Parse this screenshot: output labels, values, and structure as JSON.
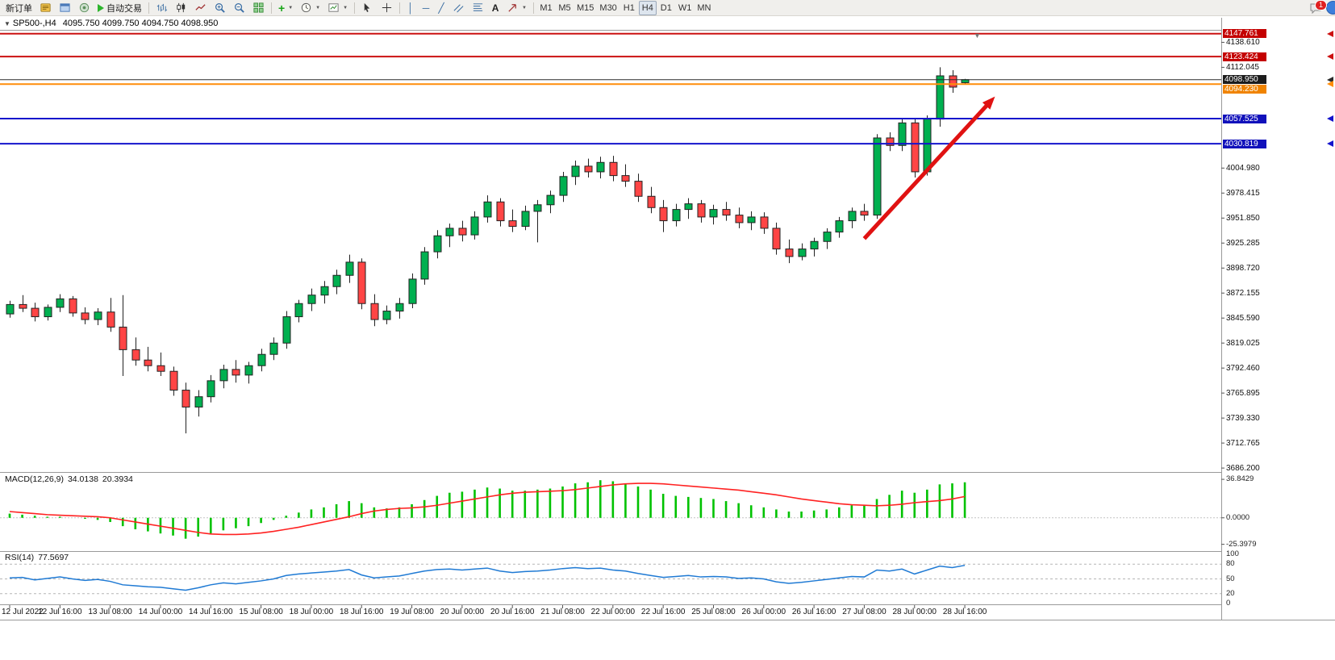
{
  "toolbar": {
    "new_order": "新订单",
    "auto_trading": "自动交易",
    "text_tool": "A",
    "timeframes": [
      "M1",
      "M5",
      "M15",
      "M30",
      "H1",
      "H4",
      "D1",
      "W1",
      "MN"
    ],
    "active_timeframe": "H4",
    "notification_count": "1"
  },
  "chart_header": {
    "symbol_period": "SP500-,H4",
    "ohlc": "4095.750 4099.750 4094.750 4098.950"
  },
  "chart_data": {
    "type": "candlestick",
    "symbol": "SP500-",
    "timeframe": "H4",
    "current_bar": {
      "open": 4095.75,
      "high": 4099.75,
      "low": 4094.75,
      "close": 4098.95
    },
    "up_color": "#00b050",
    "down_color": "#ff4545",
    "price_axis": {
      "visible_range": {
        "top": 4151.0,
        "bottom": 3682.0
      },
      "ticks": [
        "4138.610",
        "4112.045",
        "4004.980",
        "3978.415",
        "3951.850",
        "3925.285",
        "3898.720",
        "3872.155",
        "3845.590",
        "3819.025",
        "3792.460",
        "3765.895",
        "3739.330",
        "3712.765",
        "3686.200"
      ]
    },
    "price_lines": [
      {
        "price": 4147.761,
        "label": "4147.761",
        "color": "#cc1111",
        "chip_bg": "#c40000",
        "width": 2
      },
      {
        "price": 4123.424,
        "label": "4123.424",
        "color": "#cc1111",
        "chip_bg": "#c40000",
        "width": 2
      },
      {
        "price": 4098.95,
        "label": "4098.950",
        "color": "#2b2b2b",
        "chip_bg": "#1c1c1c",
        "width": 1
      },
      {
        "price": 4094.23,
        "label": "4094.230",
        "color": "#ff8d0a",
        "chip_bg": "#f08300",
        "width": 2
      },
      {
        "price": 4057.525,
        "label": "4057.525",
        "color": "#1414cc",
        "chip_bg": "#1111bb",
        "width": 2
      },
      {
        "price": 4030.819,
        "label": "4030.819",
        "color": "#1414cc",
        "chip_bg": "#1111bb",
        "width": 2
      }
    ],
    "x_labels": [
      {
        "text": "12 Jul 2022",
        "bar": 0
      },
      {
        "text": "12 Jul 16:00",
        "bar": 4
      },
      {
        "text": "13 Jul 08:00",
        "bar": 8
      },
      {
        "text": "14 Jul 00:00",
        "bar": 12
      },
      {
        "text": "14 Jul 16:00",
        "bar": 16
      },
      {
        "text": "15 Jul 08:00",
        "bar": 20
      },
      {
        "text": "18 Jul 00:00",
        "bar": 24
      },
      {
        "text": "18 Jul 16:00",
        "bar": 28
      },
      {
        "text": "19 Jul 08:00",
        "bar": 32
      },
      {
        "text": "20 Jul 00:00",
        "bar": 36
      },
      {
        "text": "20 Jul 16:00",
        "bar": 40
      },
      {
        "text": "21 Jul 08:00",
        "bar": 44
      },
      {
        "text": "22 Jul 00:00",
        "bar": 48
      },
      {
        "text": "22 Jul 16:00",
        "bar": 52
      },
      {
        "text": "25 Jul 08:00",
        "bar": 56
      },
      {
        "text": "26 Jul 00:00",
        "bar": 60
      },
      {
        "text": "26 Jul 16:00",
        "bar": 64
      },
      {
        "text": "27 Jul 08:00",
        "bar": 68
      },
      {
        "text": "28 Jul 00:00",
        "bar": 72
      },
      {
        "text": "28 Jul 16:00",
        "bar": 76
      }
    ],
    "candles": [
      [
        3850,
        3864,
        3846,
        3860
      ],
      [
        3860,
        3870,
        3852,
        3856
      ],
      [
        3856,
        3862,
        3842,
        3847
      ],
      [
        3847,
        3860,
        3843,
        3857
      ],
      [
        3857,
        3871,
        3852,
        3866
      ],
      [
        3866,
        3869,
        3847,
        3851
      ],
      [
        3851,
        3857,
        3839,
        3844
      ],
      [
        3844,
        3856,
        3838,
        3852
      ],
      [
        3852,
        3867,
        3831,
        3836
      ],
      [
        3836,
        3870,
        3784,
        3812
      ],
      [
        3812,
        3825,
        3795,
        3801
      ],
      [
        3801,
        3815,
        3789,
        3795
      ],
      [
        3795,
        3809,
        3784,
        3789
      ],
      [
        3789,
        3794,
        3763,
        3769
      ],
      [
        3769,
        3777,
        3723,
        3751
      ],
      [
        3751,
        3769,
        3741,
        3762
      ],
      [
        3762,
        3785,
        3756,
        3779
      ],
      [
        3779,
        3796,
        3771,
        3791
      ],
      [
        3791,
        3801,
        3777,
        3785
      ],
      [
        3785,
        3799,
        3776,
        3795
      ],
      [
        3795,
        3813,
        3789,
        3807
      ],
      [
        3807,
        3825,
        3801,
        3819
      ],
      [
        3819,
        3853,
        3813,
        3847
      ],
      [
        3847,
        3865,
        3841,
        3861
      ],
      [
        3861,
        3877,
        3853,
        3870
      ],
      [
        3870,
        3885,
        3861,
        3879
      ],
      [
        3879,
        3897,
        3871,
        3891
      ],
      [
        3891,
        3913,
        3883,
        3905
      ],
      [
        3905,
        3909,
        3855,
        3861
      ],
      [
        3861,
        3871,
        3837,
        3844
      ],
      [
        3844,
        3859,
        3839,
        3853
      ],
      [
        3853,
        3867,
        3845,
        3861
      ],
      [
        3861,
        3893,
        3856,
        3887
      ],
      [
        3887,
        3921,
        3881,
        3916
      ],
      [
        3916,
        3939,
        3909,
        3933
      ],
      [
        3933,
        3946,
        3921,
        3941
      ],
      [
        3941,
        3949,
        3927,
        3934
      ],
      [
        3934,
        3959,
        3929,
        3953
      ],
      [
        3953,
        3976,
        3947,
        3969
      ],
      [
        3969,
        3973,
        3943,
        3949
      ],
      [
        3949,
        3961,
        3937,
        3943
      ],
      [
        3943,
        3965,
        3939,
        3959
      ],
      [
        3959,
        3971,
        3926,
        3966
      ],
      [
        3966,
        3981,
        3957,
        3976
      ],
      [
        3976,
        4001,
        3969,
        3996
      ],
      [
        3996,
        4013,
        3987,
        4007
      ],
      [
        4007,
        4015,
        3995,
        4001
      ],
      [
        4001,
        4017,
        3994,
        4011
      ],
      [
        4011,
        4018,
        3991,
        3997
      ],
      [
        3997,
        4009,
        3985,
        3991
      ],
      [
        3991,
        3999,
        3969,
        3975
      ],
      [
        3975,
        3985,
        3957,
        3963
      ],
      [
        3963,
        3971,
        3937,
        3949
      ],
      [
        3949,
        3967,
        3943,
        3961
      ],
      [
        3961,
        3973,
        3951,
        3967
      ],
      [
        3967,
        3971,
        3947,
        3953
      ],
      [
        3953,
        3966,
        3945,
        3961
      ],
      [
        3961,
        3969,
        3949,
        3955
      ],
      [
        3955,
        3963,
        3941,
        3947
      ],
      [
        3947,
        3959,
        3939,
        3953
      ],
      [
        3953,
        3958,
        3935,
        3941
      ],
      [
        3941,
        3947,
        3913,
        3919
      ],
      [
        3919,
        3929,
        3904,
        3911
      ],
      [
        3911,
        3925,
        3907,
        3919
      ],
      [
        3919,
        3931,
        3911,
        3927
      ],
      [
        3927,
        3941,
        3919,
        3937
      ],
      [
        3937,
        3953,
        3931,
        3949
      ],
      [
        3949,
        3963,
        3941,
        3959
      ],
      [
        3959,
        3967,
        3949,
        3955
      ],
      [
        3955,
        4041,
        3951,
        4037
      ],
      [
        4037,
        4043,
        4023,
        4029
      ],
      [
        4029,
        4057,
        4023,
        4053
      ],
      [
        4053,
        4057,
        3995,
        4001
      ],
      [
        4001,
        4061,
        3997,
        4057
      ],
      [
        4057,
        4112.045,
        4049,
        4103
      ],
      [
        4103,
        4109,
        4085,
        4091
      ],
      [
        4095.75,
        4099.75,
        4094.75,
        4098.95
      ]
    ],
    "indicators": {
      "macd": {
        "name": "MACD(12,26,9)",
        "value_main": "34.0138",
        "value_signal": "20.3934",
        "axis_labels": [
          "36.8429",
          "0.0000",
          "-25.3979"
        ],
        "range": {
          "max": 40,
          "min": -28
        },
        "histogram_color": "#00c200",
        "signal_color": "#ff2222",
        "histogram": [
          4,
          3,
          2,
          1,
          1,
          0,
          -1,
          -2,
          -4,
          -8,
          -11,
          -13,
          -15,
          -17,
          -20,
          -18,
          -15,
          -12,
          -10,
          -8,
          -5,
          -2,
          2,
          5,
          8,
          10,
          13,
          16,
          14,
          10,
          9,
          10,
          13,
          17,
          21,
          24,
          25,
          27,
          29,
          28,
          26,
          26,
          27,
          28,
          30,
          33,
          34,
          36,
          35,
          33,
          30,
          27,
          23,
          21,
          20,
          19,
          18,
          16,
          14,
          12,
          10,
          8,
          6,
          6,
          7,
          8,
          10,
          12,
          12,
          18,
          22,
          26,
          24,
          27,
          32,
          33,
          34.0138
        ],
        "signal": [
          6,
          5,
          4,
          3,
          2.5,
          2,
          1.5,
          1,
          0,
          -2,
          -4,
          -6,
          -8,
          -10,
          -12,
          -14,
          -15.5,
          -16,
          -16,
          -15.5,
          -14.5,
          -13,
          -11,
          -9,
          -6.5,
          -4,
          -1.5,
          1,
          4,
          6.5,
          8,
          9,
          9.5,
          10.5,
          12,
          14,
          16,
          18,
          20,
          22,
          23.5,
          24.5,
          25,
          25.5,
          26,
          27,
          28.5,
          30,
          31.5,
          32.5,
          33,
          33,
          32.5,
          31.5,
          30.5,
          29.5,
          28.5,
          27.5,
          26.5,
          25,
          23.5,
          22,
          20,
          18,
          16.5,
          15,
          13.5,
          12.5,
          12,
          11.5,
          12,
          13,
          14.5,
          15.5,
          16.5,
          18,
          20.3934
        ]
      },
      "rsi": {
        "name": "RSI(14)",
        "value": "77.5697",
        "levels": [
          80,
          50,
          20
        ],
        "axis_labels": [
          "100",
          "80",
          "50",
          "20",
          "0"
        ],
        "range": {
          "max": 100,
          "min": 0
        },
        "line_color": "#1f7ad4",
        "values": [
          52,
          53,
          48,
          51,
          54,
          50,
          47,
          49,
          45,
          38,
          36,
          34,
          33,
          30,
          27,
          32,
          38,
          42,
          40,
          43,
          46,
          50,
          57,
          60,
          62,
          64,
          66,
          69,
          58,
          52,
          54,
          56,
          61,
          66,
          69,
          70,
          68,
          70,
          72,
          66,
          63,
          65,
          66,
          68,
          71,
          73,
          71,
          72,
          68,
          66,
          61,
          57,
          53,
          55,
          57,
          54,
          55,
          54,
          51,
          52,
          50,
          44,
          41,
          43,
          46,
          49,
          52,
          55,
          54,
          68,
          66,
          70,
          60,
          68,
          76,
          73,
          77.5697
        ]
      }
    },
    "annotation_arrow": {
      "bar_from": 68,
      "price_from": 3930,
      "bar_to": 78.4,
      "price_to": 4081,
      "color": "#e01212"
    }
  }
}
